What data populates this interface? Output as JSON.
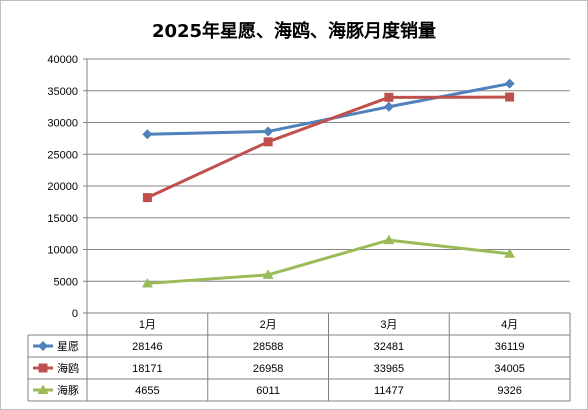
{
  "chart_data": {
    "type": "line",
    "title": "2025年星愿、海鸥、海豚月度销量",
    "categories": [
      "1月",
      "2月",
      "3月",
      "4月"
    ],
    "ylim": [
      0,
      40000
    ],
    "yticks": [
      0,
      5000,
      10000,
      15000,
      20000,
      25000,
      30000,
      35000,
      40000
    ],
    "grid": true,
    "legend": "data-table",
    "series": [
      {
        "name": "星愿",
        "values": [
          28146,
          28588,
          32481,
          36119
        ],
        "color": "#4F81BD",
        "marker": "diamond"
      },
      {
        "name": "海鸥",
        "values": [
          18171,
          26958,
          33965,
          34005
        ],
        "color": "#C0504D",
        "marker": "square"
      },
      {
        "name": "海豚",
        "values": [
          4655,
          6011,
          11477,
          9326
        ],
        "color": "#9BBB59",
        "marker": "triangle"
      }
    ]
  }
}
